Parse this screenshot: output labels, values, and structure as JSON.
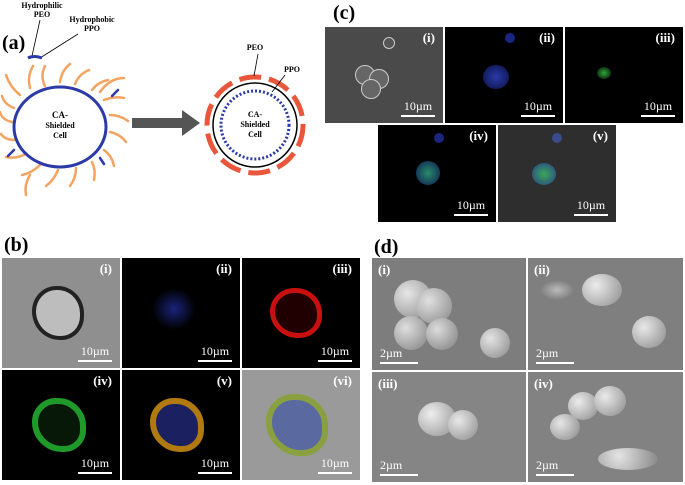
{
  "panels": {
    "a": {
      "letter": "(a)",
      "labels": {
        "hydrophilic": [
          "Hydrophilic",
          "PEO"
        ],
        "hydrophobic": [
          "Hydrophobic",
          "PPO"
        ],
        "peo": "PEO",
        "ppo": "PPO",
        "cell_left": [
          "CA-",
          "Shielded",
          "Cell"
        ],
        "cell_right": [
          "CA-",
          "Shielded",
          "Cell"
        ]
      },
      "colors": {
        "polymer": "#f4a460",
        "membrane": "#2c3aa8",
        "shell": "#e8573c",
        "arrow": "#555555"
      }
    },
    "b": {
      "letter": "(b)",
      "tiles": [
        {
          "label": "(i)",
          "scale": "10µm"
        },
        {
          "label": "(ii)",
          "scale": "10µm"
        },
        {
          "label": "(iii)",
          "scale": "10µm"
        },
        {
          "label": "(iv)",
          "scale": "10µm"
        },
        {
          "label": "(v)",
          "scale": "10µm"
        },
        {
          "label": "(vi)",
          "scale": "10µm"
        }
      ]
    },
    "c": {
      "letter": "(c)",
      "tiles": [
        {
          "label": "(i)",
          "scale": "10µm"
        },
        {
          "label": "(ii)",
          "scale": "10µm"
        },
        {
          "label": "(iii)",
          "scale": "10µm"
        },
        {
          "label": "(iv)",
          "scale": "10µm"
        },
        {
          "label": "(v)",
          "scale": "10µm"
        }
      ]
    },
    "d": {
      "letter": "(d)",
      "tiles": [
        {
          "label": "(i)",
          "scale": "2µm"
        },
        {
          "label": "(ii)",
          "scale": "2µm"
        },
        {
          "label": "(iii)",
          "scale": "2µm"
        },
        {
          "label": "(iv)",
          "scale": "2µm"
        }
      ]
    }
  }
}
